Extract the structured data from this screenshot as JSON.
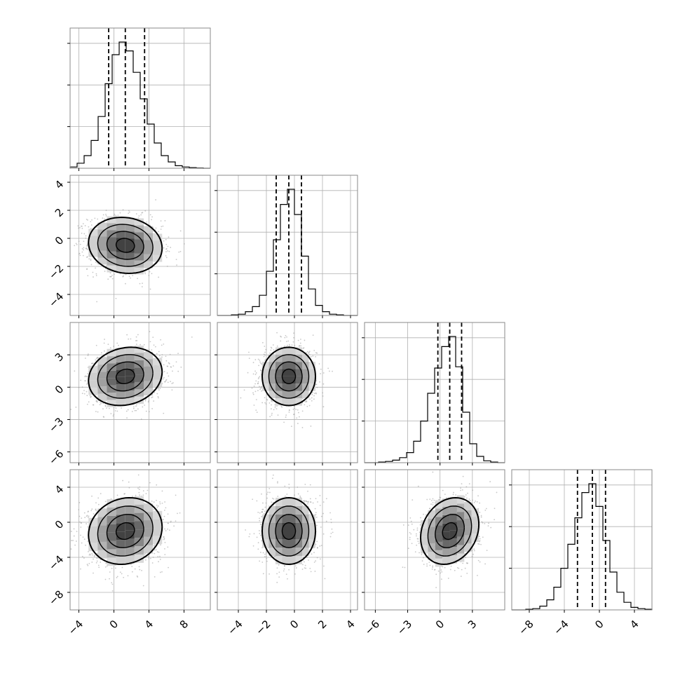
{
  "figure": {
    "type": "corner-plot"
  },
  "style": {
    "grid_color": "#b0b0b0",
    "line_color": "#000000",
    "point_color": "#9a9a9a",
    "background": "#ffffff"
  },
  "chart_data": {
    "type": "corner",
    "n_params": 4,
    "quantiles": [
      0.16,
      0.5,
      0.84
    ],
    "grid": true,
    "axes": {
      "x_ticks": [
        [
          "−4",
          "0",
          "4",
          "8"
        ],
        [
          "−4",
          "−2",
          "0",
          "2",
          "4"
        ],
        [
          "−6",
          "−3",
          "0",
          "3"
        ],
        [
          "−8",
          "−4",
          "0",
          "4"
        ]
      ],
      "x_tick_values": [
        [
          -4,
          0,
          4,
          8
        ],
        [
          -4,
          -2,
          0,
          2,
          4
        ],
        [
          -6,
          -3,
          0,
          3
        ],
        [
          -8,
          -4,
          0,
          4
        ]
      ],
      "y_ticks": [
        [],
        [
          "4",
          "2",
          "0",
          "−2",
          "−4"
        ],
        [
          "3",
          "0",
          "−3",
          "−6"
        ],
        [
          "4",
          "0",
          "−4",
          "−8"
        ]
      ],
      "y_tick_values": [
        [],
        [
          4,
          2,
          0,
          -2,
          -4
        ],
        [
          3,
          0,
          -3,
          -6
        ],
        [
          4,
          0,
          -4,
          -8
        ]
      ],
      "ranges": [
        [
          -5,
          11
        ],
        [
          -5.5,
          4.5
        ],
        [
          -7,
          6
        ],
        [
          -10,
          6
        ]
      ]
    },
    "diagonal": [
      {
        "param": 0,
        "bins": [
          -5,
          -4.2,
          -3.4,
          -2.6,
          -1.8,
          -1,
          -0.2,
          0.6,
          1.4,
          2.2,
          3,
          3.8,
          4.6,
          5.4,
          6.2,
          7,
          7.8,
          8.6,
          9.4,
          10.2,
          11
        ],
        "counts": [
          0.01,
          0.04,
          0.1,
          0.22,
          0.41,
          0.67,
          0.9,
          1.0,
          0.93,
          0.76,
          0.55,
          0.35,
          0.2,
          0.1,
          0.05,
          0.02,
          0.01,
          0.005,
          0.002,
          0
        ],
        "quantile_values": [
          -0.6,
          1.3,
          3.5
        ]
      },
      {
        "param": 1,
        "bins": [
          -5.5,
          -5,
          -4.5,
          -4,
          -3.5,
          -3,
          -2.5,
          -2,
          -1.5,
          -1,
          -0.5,
          0,
          0.5,
          1,
          1.5,
          2,
          2.5,
          3,
          3.5,
          4,
          4.5
        ],
        "counts": [
          0,
          0,
          0.005,
          0.01,
          0.03,
          0.07,
          0.16,
          0.35,
          0.6,
          0.88,
          1.0,
          0.8,
          0.47,
          0.21,
          0.08,
          0.03,
          0.01,
          0.005,
          0,
          0
        ],
        "quantile_values": [
          -1.3,
          -0.4,
          0.5
        ]
      },
      {
        "param": 2,
        "bins": [
          -7,
          -6.35,
          -5.7,
          -5.05,
          -4.4,
          -3.75,
          -3.1,
          -2.45,
          -1.8,
          -1.15,
          -0.5,
          0.15,
          0.8,
          1.45,
          2.1,
          2.75,
          3.4,
          4.05,
          4.7,
          5.35,
          6
        ],
        "counts": [
          0,
          0,
          0.005,
          0.01,
          0.02,
          0.04,
          0.08,
          0.17,
          0.33,
          0.55,
          0.75,
          0.92,
          1.0,
          0.76,
          0.4,
          0.15,
          0.05,
          0.015,
          0.005,
          0
        ],
        "quantile_values": [
          -0.2,
          0.9,
          2.0
        ]
      },
      {
        "param": 3,
        "bins": [
          -10,
          -9.2,
          -8.4,
          -7.6,
          -6.8,
          -6,
          -5.2,
          -4.4,
          -3.6,
          -2.8,
          -2,
          -1.2,
          -0.4,
          0.4,
          1.2,
          2,
          2.8,
          3.6,
          4.4,
          5.2,
          6
        ],
        "counts": [
          0,
          0,
          0.005,
          0.01,
          0.03,
          0.08,
          0.18,
          0.33,
          0.52,
          0.73,
          0.93,
          1.0,
          0.82,
          0.55,
          0.3,
          0.14,
          0.06,
          0.02,
          0.01,
          0.005
        ],
        "quantile_values": [
          -2.5,
          -0.8,
          0.7
        ]
      }
    ],
    "pairs": [
      {
        "x_param": 0,
        "y_param": 1,
        "center": [
          1.3,
          -0.5
        ],
        "sigma": [
          2.1,
          1.0
        ],
        "corr": -0.1
      },
      {
        "x_param": 0,
        "y_param": 2,
        "center": [
          1.3,
          1.0
        ],
        "sigma": [
          2.1,
          1.35
        ],
        "corr": 0.15
      },
      {
        "x_param": 1,
        "y_param": 2,
        "center": [
          -0.4,
          1.0
        ],
        "sigma": [
          0.95,
          1.35
        ],
        "corr": 0.0
      },
      {
        "x_param": 0,
        "y_param": 3,
        "center": [
          1.3,
          -1.0
        ],
        "sigma": [
          2.1,
          1.9
        ],
        "corr": 0.12
      },
      {
        "x_param": 1,
        "y_param": 3,
        "center": [
          -0.4,
          -1.0
        ],
        "sigma": [
          0.95,
          1.9
        ],
        "corr": 0.0
      },
      {
        "x_param": 2,
        "y_param": 3,
        "center": [
          0.9,
          -1.0
        ],
        "sigma": [
          1.35,
          1.9
        ],
        "corr": 0.2
      }
    ],
    "contour_levels_sigma": [
      0.5,
      1.0,
      1.5,
      2.0
    ]
  }
}
